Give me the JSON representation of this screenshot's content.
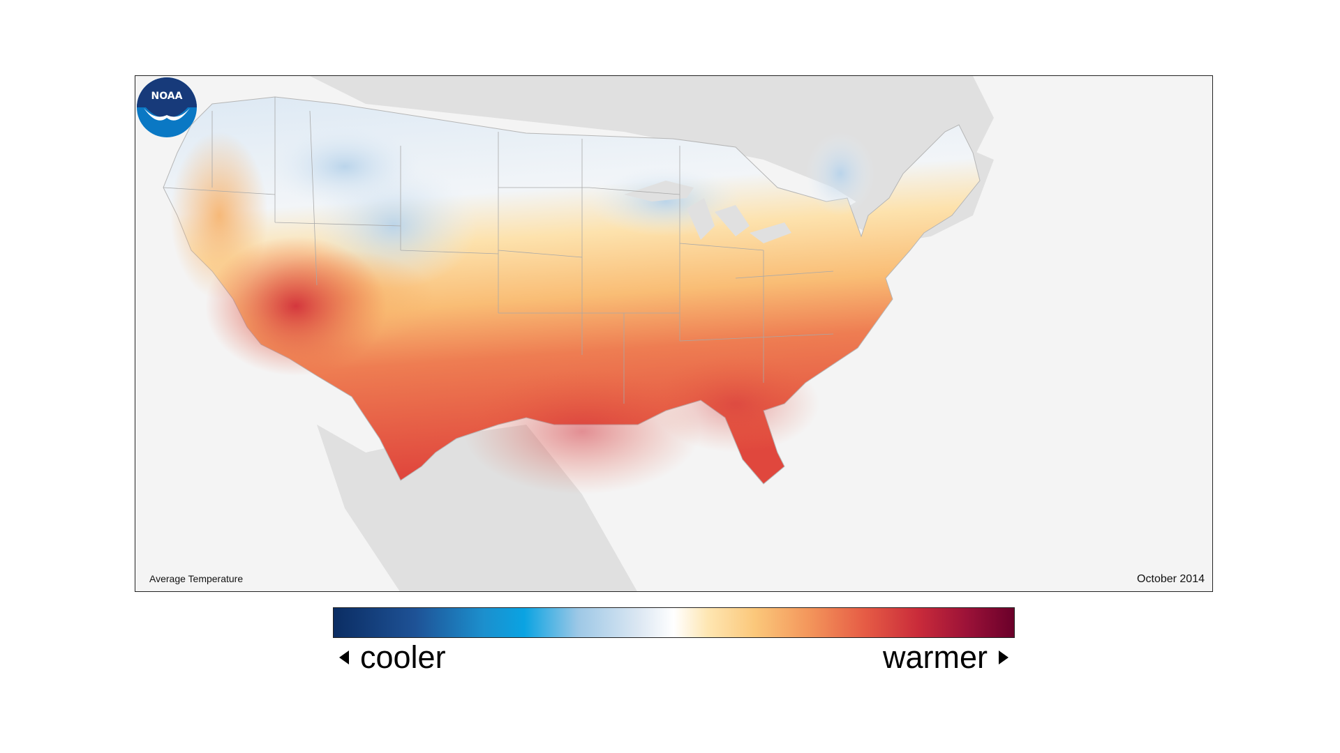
{
  "map": {
    "title": "Average Temperature",
    "date": "October 2014",
    "logo_text": "NOAA"
  },
  "legend": {
    "low_label": "cooler",
    "high_label": "warmer",
    "colors": [
      "#0b2d63",
      "#1c8fcd",
      "#9ec8e6",
      "#ffffff",
      "#fbc77a",
      "#e65c45",
      "#6a002a"
    ]
  }
}
